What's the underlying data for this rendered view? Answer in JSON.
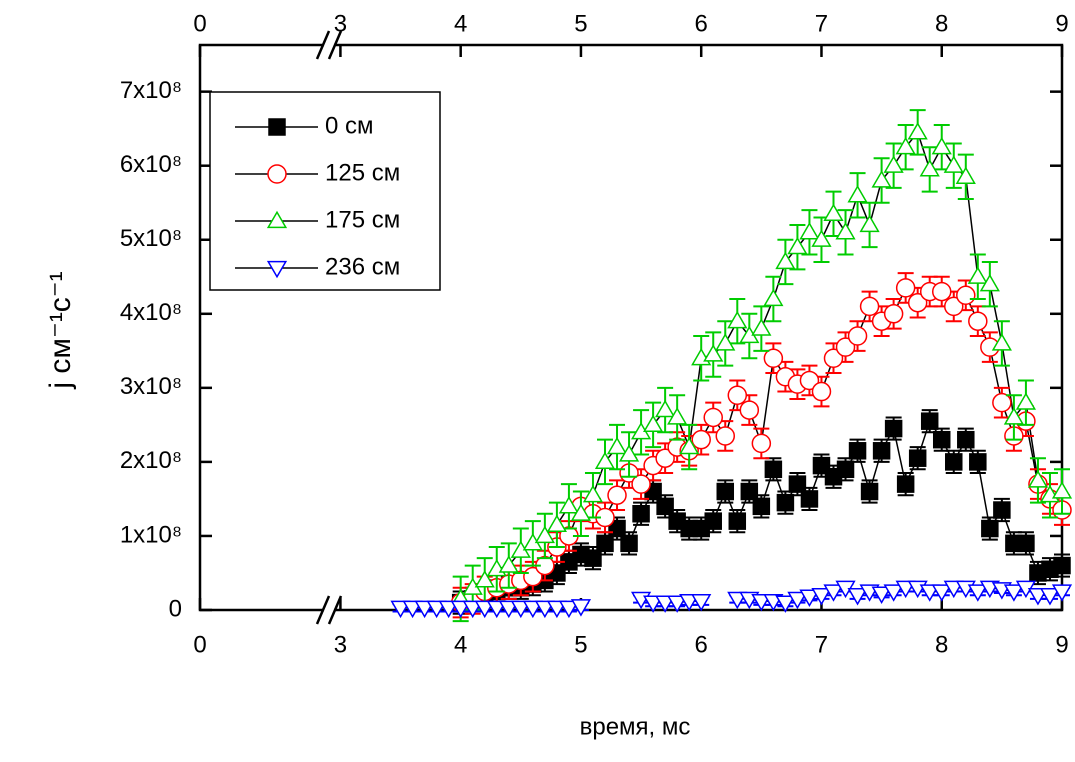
{
  "chart_data": {
    "type": "line",
    "xlabel": "время, мс",
    "ylabel": "j см⁻¹с⁻¹",
    "xlim": [
      0,
      9
    ],
    "xbreak": [
      1,
      2.93
    ],
    "xticks": [
      0,
      3,
      4,
      5,
      6,
      7,
      8,
      9
    ],
    "ylim": [
      0,
      763000000
    ],
    "yticks": [
      0,
      {
        "value": 100000000,
        "label": "1x10⁸"
      },
      {
        "value": 200000000,
        "label": "2x10⁸"
      },
      {
        "value": 300000000,
        "label": "3x10⁸"
      },
      {
        "value": 400000000,
        "label": "4x10⁸"
      },
      {
        "value": 500000000,
        "label": "5x10⁸"
      },
      {
        "value": 600000000,
        "label": "6x10⁸"
      },
      {
        "value": 700000000,
        "label": "7x10⁸"
      }
    ],
    "legend": "upper left",
    "x": [
      3.5,
      3.6,
      3.7,
      3.8,
      3.9,
      4.0,
      4.1,
      4.2,
      4.3,
      4.4,
      4.5,
      4.6,
      4.7,
      4.8,
      4.9,
      5.0,
      5.1,
      5.2,
      5.3,
      5.4,
      5.5,
      5.6,
      5.7,
      5.8,
      5.9,
      6.0,
      6.1,
      6.2,
      6.3,
      6.4,
      6.5,
      6.6,
      6.7,
      6.8,
      6.9,
      7.0,
      7.1,
      7.2,
      7.3,
      7.4,
      7.5,
      7.6,
      7.7,
      7.8,
      7.9,
      8.0,
      8.1,
      8.2,
      8.3,
      8.4,
      8.5,
      8.6,
      8.7,
      8.8,
      8.9,
      9.0
    ],
    "series": [
      {
        "name": "0 см",
        "color": "#000000",
        "marker": "square",
        "error": 15000000,
        "values": [
          null,
          null,
          null,
          null,
          null,
          10000000.0,
          15000000.0,
          20000000.0,
          25000000.0,
          30000000.0,
          30000000.0,
          35000000.0,
          40000000.0,
          50000000.0,
          65000000.0,
          75000000.0,
          70000000.0,
          90000000.0,
          110000000.0,
          90000000.0,
          130000000.0,
          160000000.0,
          140000000.0,
          120000000.0,
          110000000.0,
          110000000.0,
          120000000.0,
          160000000.0,
          120000000.0,
          160000000.0,
          140000000.0,
          190000000.0,
          145000000.0,
          170000000.0,
          150000000.0,
          195000000.0,
          180000000.0,
          190000000.0,
          215000000.0,
          160000000.0,
          215000000.0,
          245000000.0,
          170000000.0,
          205000000.0,
          255000000.0,
          230000000.0,
          200000000.0,
          230000000.0,
          200000000.0,
          110000000.0,
          135000000.0,
          90000000.0,
          90000000.0,
          50000000.0,
          55000000.0,
          60000000.0
        ]
      },
      {
        "name": "125 см",
        "color": "#ff0000",
        "marker": "circle",
        "error": 20000000,
        "values": [
          null,
          null,
          null,
          null,
          null,
          10000000.0,
          15000000.0,
          25000000.0,
          30000000.0,
          35000000.0,
          40000000.0,
          45000000.0,
          60000000.0,
          85000000.0,
          100000000.0,
          140000000.0,
          130000000.0,
          125000000.0,
          155000000.0,
          185000000.0,
          170000000.0,
          195000000.0,
          205000000.0,
          220000000.0,
          215000000.0,
          230000000.0,
          260000000.0,
          235000000.0,
          290000000.0,
          270000000.0,
          225000000.0,
          340000000.0,
          315000000.0,
          305000000.0,
          310000000.0,
          295000000.0,
          340000000.0,
          355000000.0,
          370000000.0,
          410000000.0,
          390000000.0,
          400000000.0,
          435000000.0,
          415000000.0,
          430000000.0,
          430000000.0,
          410000000.0,
          425000000.0,
          390000000.0,
          355000000.0,
          280000000.0,
          235000000.0,
          255000000.0,
          170000000.0,
          150000000.0,
          135000000.0
        ]
      },
      {
        "name": "175 см",
        "color": "#00cc00",
        "marker": "triangle-up",
        "error": 30000000,
        "values": [
          null,
          null,
          null,
          null,
          null,
          15000000.0,
          30000000.0,
          40000000.0,
          55000000.0,
          60000000.0,
          80000000.0,
          90000000.0,
          100000000.0,
          115000000.0,
          140000000.0,
          130000000.0,
          155000000.0,
          200000000.0,
          220000000.0,
          210000000.0,
          240000000.0,
          250000000.0,
          270000000.0,
          260000000.0,
          220000000.0,
          340000000.0,
          345000000.0,
          360000000.0,
          390000000.0,
          370000000.0,
          380000000.0,
          420000000.0,
          470000000.0,
          490000000.0,
          510000000.0,
          500000000.0,
          535000000.0,
          510000000.0,
          560000000.0,
          520000000.0,
          580000000.0,
          600000000.0,
          625000000.0,
          645000000.0,
          595000000.0,
          625000000.0,
          600000000.0,
          585000000.0,
          450000000.0,
          440000000.0,
          360000000.0,
          260000000.0,
          280000000.0,
          175000000.0,
          155000000.0,
          160000000.0
        ]
      },
      {
        "name": "236 см",
        "color": "#0000ff",
        "marker": "triangle-down",
        "error": 5000000,
        "values": [
          3000000.0,
          3000000.0,
          3000000.0,
          3000000.0,
          3000000.0,
          3000000.0,
          3000000.0,
          3000000.0,
          3000000.0,
          3000000.0,
          3000000.0,
          3000000.0,
          3000000.0,
          3000000.0,
          3000000.0,
          5000000.0,
          null,
          null,
          null,
          null,
          15000000.0,
          10000000.0,
          10000000.0,
          10000000.0,
          12000000.0,
          12000000.0,
          null,
          null,
          15000000.0,
          15000000.0,
          12000000.0,
          12000000.0,
          10000000.0,
          15000000.0,
          18000000.0,
          20000000.0,
          25000000.0,
          30000000.0,
          20000000.0,
          25000000.0,
          22000000.0,
          25000000.0,
          30000000.0,
          30000000.0,
          25000000.0,
          25000000.0,
          30000000.0,
          30000000.0,
          25000000.0,
          30000000.0,
          28000000.0,
          25000000.0,
          30000000.0,
          20000000.0,
          20000000.0,
          25000000.0
        ]
      }
    ]
  }
}
